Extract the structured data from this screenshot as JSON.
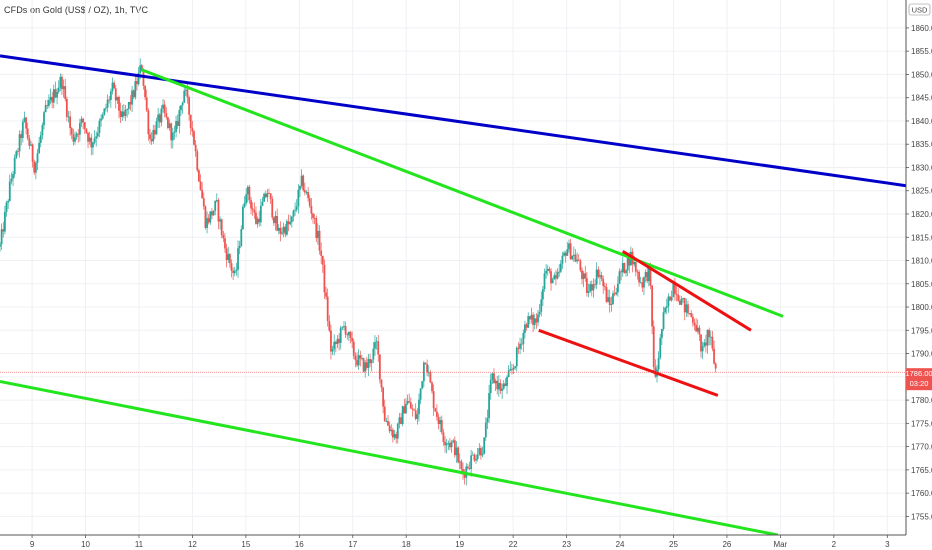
{
  "header": {
    "symbol_title": "CFDs on Gold (US$ / OZ), 1h, TVC"
  },
  "colors": {
    "bull": "#26a69a",
    "bear": "#ef5350",
    "blue_trend": "#0000c8",
    "green_trend": "#22e51e",
    "red_trend": "#ee1111",
    "price_label_bg": "#ef5350",
    "grid": "#eef0f4"
  },
  "chart_data": {
    "type": "candlestick",
    "title": "CFDs on Gold (US$ / OZ), 1h, TVC",
    "currency": "USD",
    "ylim": [
      1751,
      1866
    ],
    "y_ticks": [
      1755,
      1760,
      1765,
      1770,
      1775,
      1780,
      1785,
      1790,
      1795,
      1800,
      1805,
      1810,
      1815,
      1820,
      1825,
      1830,
      1835,
      1840,
      1845,
      1850,
      1855,
      1860
    ],
    "x_ticks": [
      {
        "label": "9",
        "x": 8.5
      },
      {
        "label": "10",
        "x": 9.5
      },
      {
        "label": "11",
        "x": 10.5
      },
      {
        "label": "12",
        "x": 11.5
      },
      {
        "label": "15",
        "x": 12.5
      },
      {
        "label": "16",
        "x": 13.5
      },
      {
        "label": "17",
        "x": 14.5
      },
      {
        "label": "18",
        "x": 15.5
      },
      {
        "label": "19",
        "x": 16.5
      },
      {
        "label": "22",
        "x": 17.5
      },
      {
        "label": "23",
        "x": 18.5
      },
      {
        "label": "24",
        "x": 19.5
      },
      {
        "label": "25",
        "x": 20.5
      },
      {
        "label": "26",
        "x": 21.5
      },
      {
        "label": "Mar",
        "x": 22.5
      },
      {
        "label": "2",
        "x": 23.5
      },
      {
        "label": "3",
        "x": 24.5
      }
    ],
    "xlim": [
      7.9,
      24.85
    ],
    "current_price": "1786.00",
    "countdown": "03:20",
    "price_path": [
      [
        7.9,
        1813
      ],
      [
        8.1,
        1827
      ],
      [
        8.35,
        1840
      ],
      [
        8.55,
        1830
      ],
      [
        8.75,
        1842
      ],
      [
        9.05,
        1849
      ],
      [
        9.25,
        1836
      ],
      [
        9.45,
        1840
      ],
      [
        9.6,
        1835
      ],
      [
        9.8,
        1840
      ],
      [
        10.0,
        1847
      ],
      [
        10.2,
        1840
      ],
      [
        10.4,
        1846
      ],
      [
        10.55,
        1852
      ],
      [
        10.7,
        1836
      ],
      [
        10.95,
        1842
      ],
      [
        11.15,
        1836
      ],
      [
        11.35,
        1847
      ],
      [
        11.5,
        1838
      ],
      [
        11.75,
        1818
      ],
      [
        11.95,
        1822
      ],
      [
        12.1,
        1813
      ],
      [
        12.3,
        1806
      ],
      [
        12.5,
        1826
      ],
      [
        12.7,
        1818
      ],
      [
        12.9,
        1825
      ],
      [
        13.1,
        1816
      ],
      [
        13.35,
        1818
      ],
      [
        13.55,
        1827
      ],
      [
        13.75,
        1820
      ],
      [
        13.9,
        1812
      ],
      [
        14.1,
        1790
      ],
      [
        14.35,
        1796
      ],
      [
        14.55,
        1789
      ],
      [
        14.75,
        1787
      ],
      [
        14.95,
        1792
      ],
      [
        15.1,
        1776
      ],
      [
        15.3,
        1772
      ],
      [
        15.5,
        1780
      ],
      [
        15.7,
        1776
      ],
      [
        15.85,
        1790
      ],
      [
        16.0,
        1780
      ],
      [
        16.2,
        1772
      ],
      [
        16.4,
        1770
      ],
      [
        16.55,
        1764
      ],
      [
        16.75,
        1768
      ],
      [
        16.95,
        1770
      ],
      [
        17.1,
        1785
      ],
      [
        17.3,
        1782
      ],
      [
        17.5,
        1787
      ],
      [
        17.75,
        1797
      ],
      [
        17.95,
        1797
      ],
      [
        18.1,
        1808
      ],
      [
        18.3,
        1805
      ],
      [
        18.5,
        1813
      ],
      [
        18.7,
        1810
      ],
      [
        18.9,
        1803
      ],
      [
        19.1,
        1808
      ],
      [
        19.3,
        1800
      ],
      [
        19.5,
        1807
      ],
      [
        19.7,
        1811
      ],
      [
        19.9,
        1805
      ],
      [
        20.05,
        1808
      ],
      [
        20.15,
        1783
      ],
      [
        20.3,
        1797
      ],
      [
        20.5,
        1805
      ],
      [
        20.7,
        1800
      ],
      [
        20.9,
        1797
      ],
      [
        21.05,
        1790
      ],
      [
        21.15,
        1795
      ],
      [
        21.3,
        1786
      ]
    ],
    "trendlines": [
      {
        "color": "blue",
        "points": [
          [
            7.9,
            1854
          ],
          [
            24.9,
            1826
          ]
        ]
      },
      {
        "color": "green",
        "points": [
          [
            10.55,
            1851
          ],
          [
            22.55,
            1798
          ]
        ]
      },
      {
        "color": "green",
        "points": [
          [
            7.9,
            1784
          ],
          [
            22.45,
            1751
          ]
        ]
      },
      {
        "color": "red",
        "points": [
          [
            19.55,
            1812
          ],
          [
            21.95,
            1795
          ]
        ]
      },
      {
        "color": "red",
        "points": [
          [
            17.98,
            1795
          ],
          [
            21.33,
            1781
          ]
        ]
      }
    ]
  }
}
